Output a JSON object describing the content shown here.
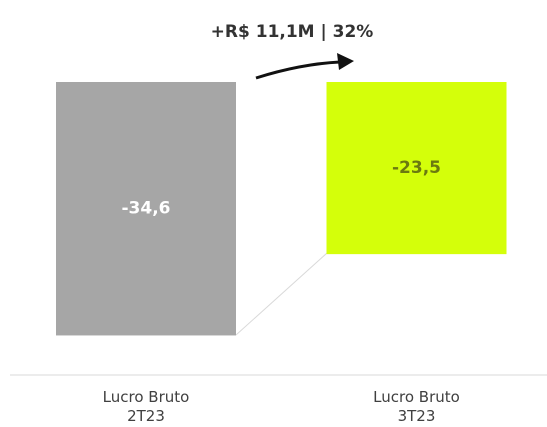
{
  "chart_data": {
    "type": "bar",
    "annotation": "+R$ 11,1M | 32%",
    "categories": [
      "Lucro Bruto\n2T23",
      "Lucro Bruto\n3T23"
    ],
    "values": [
      -34.6,
      -23.5
    ],
    "value_labels": [
      "-34,6",
      "-23,5"
    ],
    "colors": [
      "#a6a6a6",
      "#d4ff0a"
    ],
    "ylim": [
      -40,
      0
    ]
  }
}
